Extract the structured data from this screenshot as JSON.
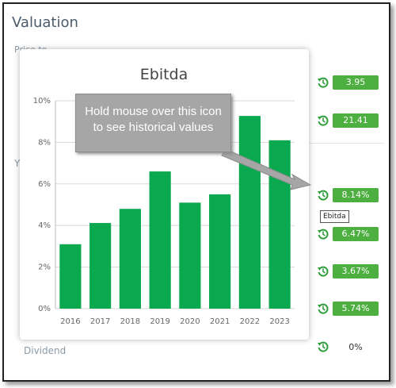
{
  "section_title": "Valuation",
  "hidden_labels": [
    "Price to",
    "Y"
  ],
  "dividend_label": "Dividend",
  "badges": [
    "3.95",
    "21.41",
    "8.14%",
    "6.47%",
    "3.67%",
    "5.74%"
  ],
  "plain_value": "0%",
  "tooltip": "Ebitda",
  "callout": "Hold mouse over this icon to see historical values",
  "chart_data": {
    "type": "bar",
    "title": "Ebitda",
    "categories": [
      "2016",
      "2017",
      "2018",
      "2019",
      "2020",
      "2021",
      "2022",
      "2023"
    ],
    "values": [
      3.1,
      4.12,
      4.8,
      6.6,
      5.1,
      5.5,
      9.27,
      8.1
    ],
    "color": "#0aa84f",
    "ylim": [
      0,
      10
    ],
    "yticks": [
      {
        "value": 0,
        "label": "0%"
      },
      {
        "value": 2,
        "label": "2%"
      },
      {
        "value": 4,
        "label": "4%"
      },
      {
        "value": 6,
        "label": "6%"
      },
      {
        "value": 8,
        "label": "8%"
      },
      {
        "value": 10,
        "label": "10%"
      }
    ],
    "grid": true
  }
}
